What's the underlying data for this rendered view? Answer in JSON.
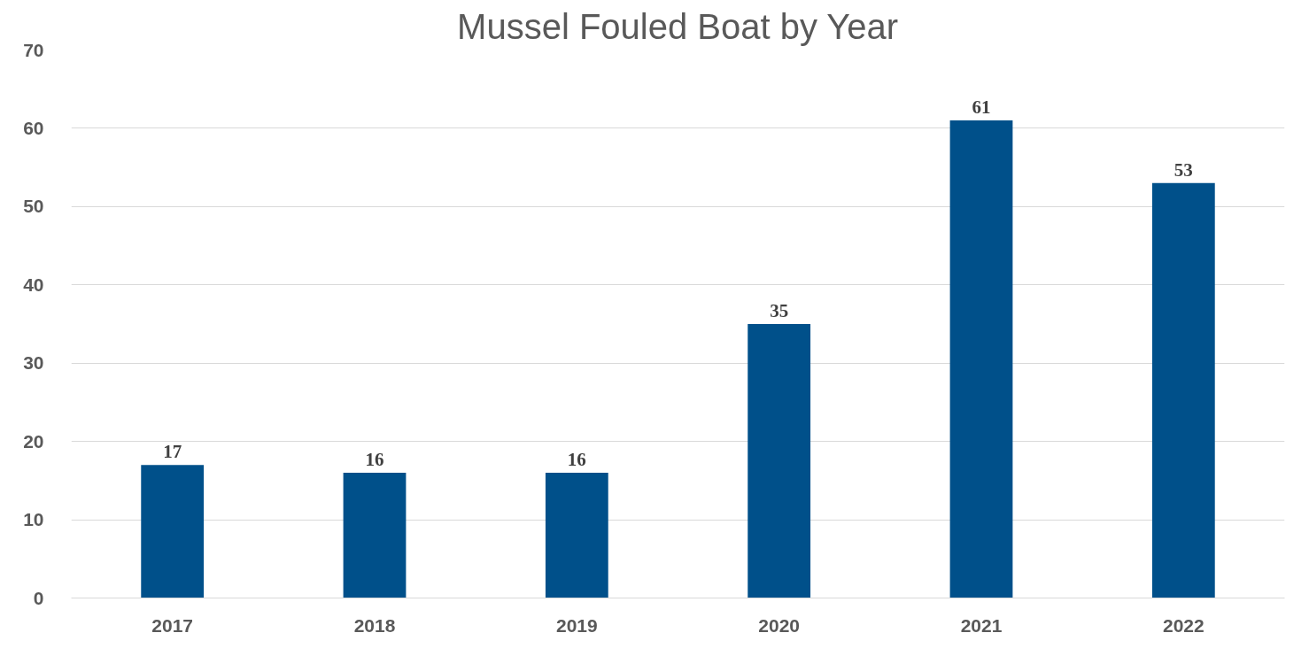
{
  "chart_data": {
    "type": "bar",
    "title": "Mussel Fouled Boat by Year",
    "categories": [
      "2017",
      "2018",
      "2019",
      "2020",
      "2021",
      "2022"
    ],
    "values": [
      17,
      16,
      16,
      35,
      61,
      53
    ],
    "color": "#00508a",
    "ylim": [
      0,
      70
    ],
    "yticks": [
      0,
      10,
      20,
      30,
      40,
      50,
      60,
      70
    ],
    "grid": "y",
    "data_labels": true
  }
}
